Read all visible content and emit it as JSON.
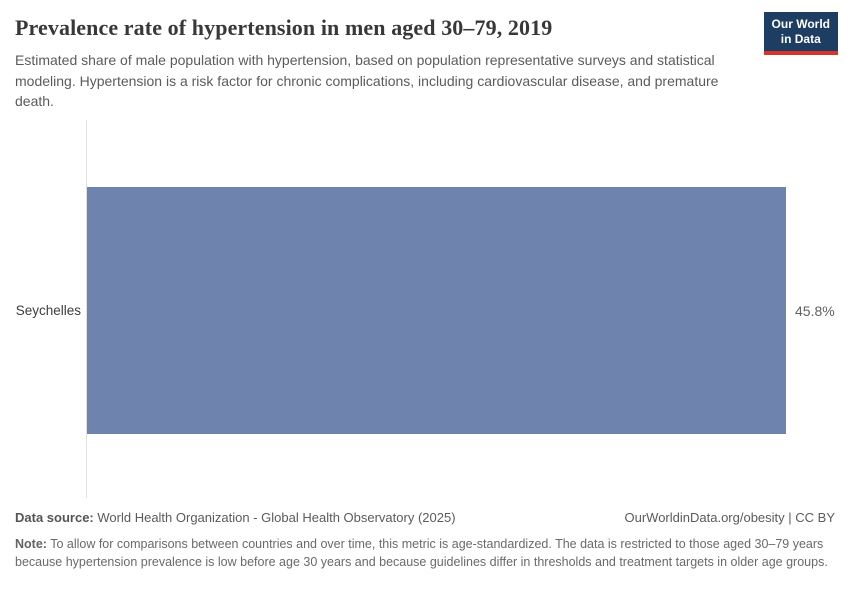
{
  "header": {
    "title": "Prevalence rate of hypertension in men aged 30–79, 2019",
    "subtitle": "Estimated share of male population with hypertension, based on population representative surveys and statistical modeling. Hypertension is a risk factor for chronic complications, including cardiovascular disease, and premature death.",
    "logo": {
      "line1": "Our World",
      "line2": "in Data"
    }
  },
  "chart_data": {
    "type": "bar",
    "orientation": "horizontal",
    "title": "Prevalence rate of hypertension in men aged 30–79, 2019",
    "categories": [
      "Seychelles"
    ],
    "values": [
      45.8
    ],
    "value_labels": [
      "45.8%"
    ],
    "xlabel": "",
    "ylabel": "",
    "xlim": [
      0,
      45.8
    ],
    "grid": false,
    "legend": false,
    "bar_color": "#6e84ae"
  },
  "footer": {
    "data_source_label": "Data source:",
    "data_source_text": "World Health Organization - Global Health Observatory (2025)",
    "link_text": "OurWorldinData.org/obesity | CC BY",
    "note_label": "Note:",
    "note_text": "To allow for comparisons between countries and over time, this metric is age-standardized. The data is restricted to those aged 30–79 years because hypertension prevalence is low before age 30 years and because guidelines differ in thresholds and treatment targets in older age groups."
  },
  "colors": {
    "bar": "#6e84ae",
    "logo_background": "#1d3d63",
    "logo_underline_red": "#d7342c",
    "axis_line": "#e2e2e2",
    "title_text": "#383838",
    "subtitle_text": "#5b5b5b"
  }
}
